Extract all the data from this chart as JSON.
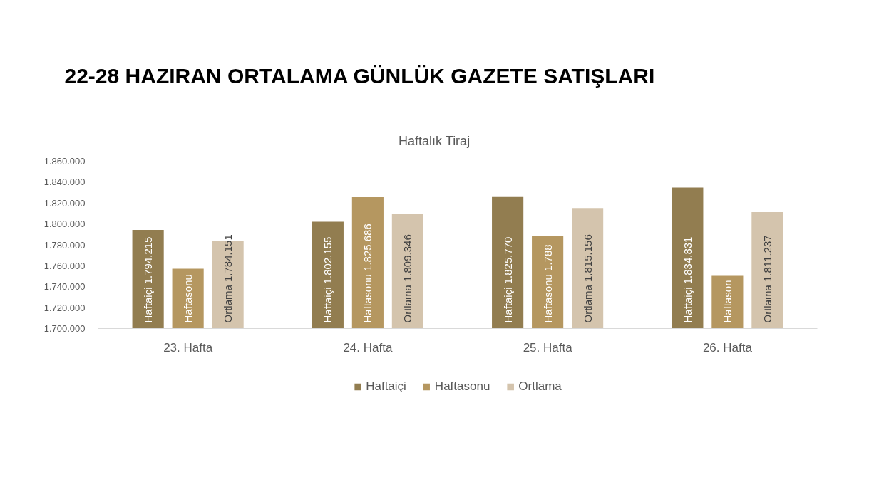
{
  "chart_data": {
    "type": "bar",
    "title": "22-28 HAZIRAN ORTALAMA GÜNLÜK GAZETE SATIŞLARI",
    "subtitle": "Haftalık Tiraj",
    "categories": [
      "23. Hafta",
      "24. Hafta",
      "25. Hafta",
      "26. Hafta"
    ],
    "series": [
      {
        "name": "Haftaiçi",
        "color": "#927d50",
        "values": [
          1794215,
          1802155,
          1825770,
          1834831
        ],
        "value_labels": [
          "Haftaiçi 1.794.215",
          "Haftaiçi 1.802.155",
          "Haftaiçi 1.825.770",
          "Haftaiçi 1.834.831"
        ]
      },
      {
        "name": "Haftasonu",
        "color": "#b59760",
        "values": [
          1757200,
          1825686,
          1788500,
          1750400
        ],
        "value_labels": [
          "Haftasonu",
          "Haftasonu 1.825.686",
          "Haftasonu 1.788",
          "Haftason"
        ]
      },
      {
        "name": "Ortlama",
        "color": "#d4c4ad",
        "values": [
          1784151,
          1809346,
          1815156,
          1811237
        ],
        "value_labels": [
          "Ortlama 1.784.151",
          "Ortlama 1.809.346",
          "Ortlama 1.815.156",
          "Ortlama 1.811.237"
        ]
      }
    ],
    "ylim": [
      1700000,
      1860000
    ],
    "yticks": [
      {
        "value": 1700000,
        "label": "1.700.000"
      },
      {
        "value": 1720000,
        "label": "1.720.000"
      },
      {
        "value": 1740000,
        "label": "1.740.000"
      },
      {
        "value": 1760000,
        "label": "1.760.000"
      },
      {
        "value": 1780000,
        "label": "1.780.000"
      },
      {
        "value": 1800000,
        "label": "1.800.000"
      },
      {
        "value": 1820000,
        "label": "1.820.000"
      },
      {
        "value": 1840000,
        "label": "1.840.000"
      },
      {
        "value": 1860000,
        "label": "1.860.000"
      }
    ],
    "grid": false,
    "legend": "bottom"
  }
}
